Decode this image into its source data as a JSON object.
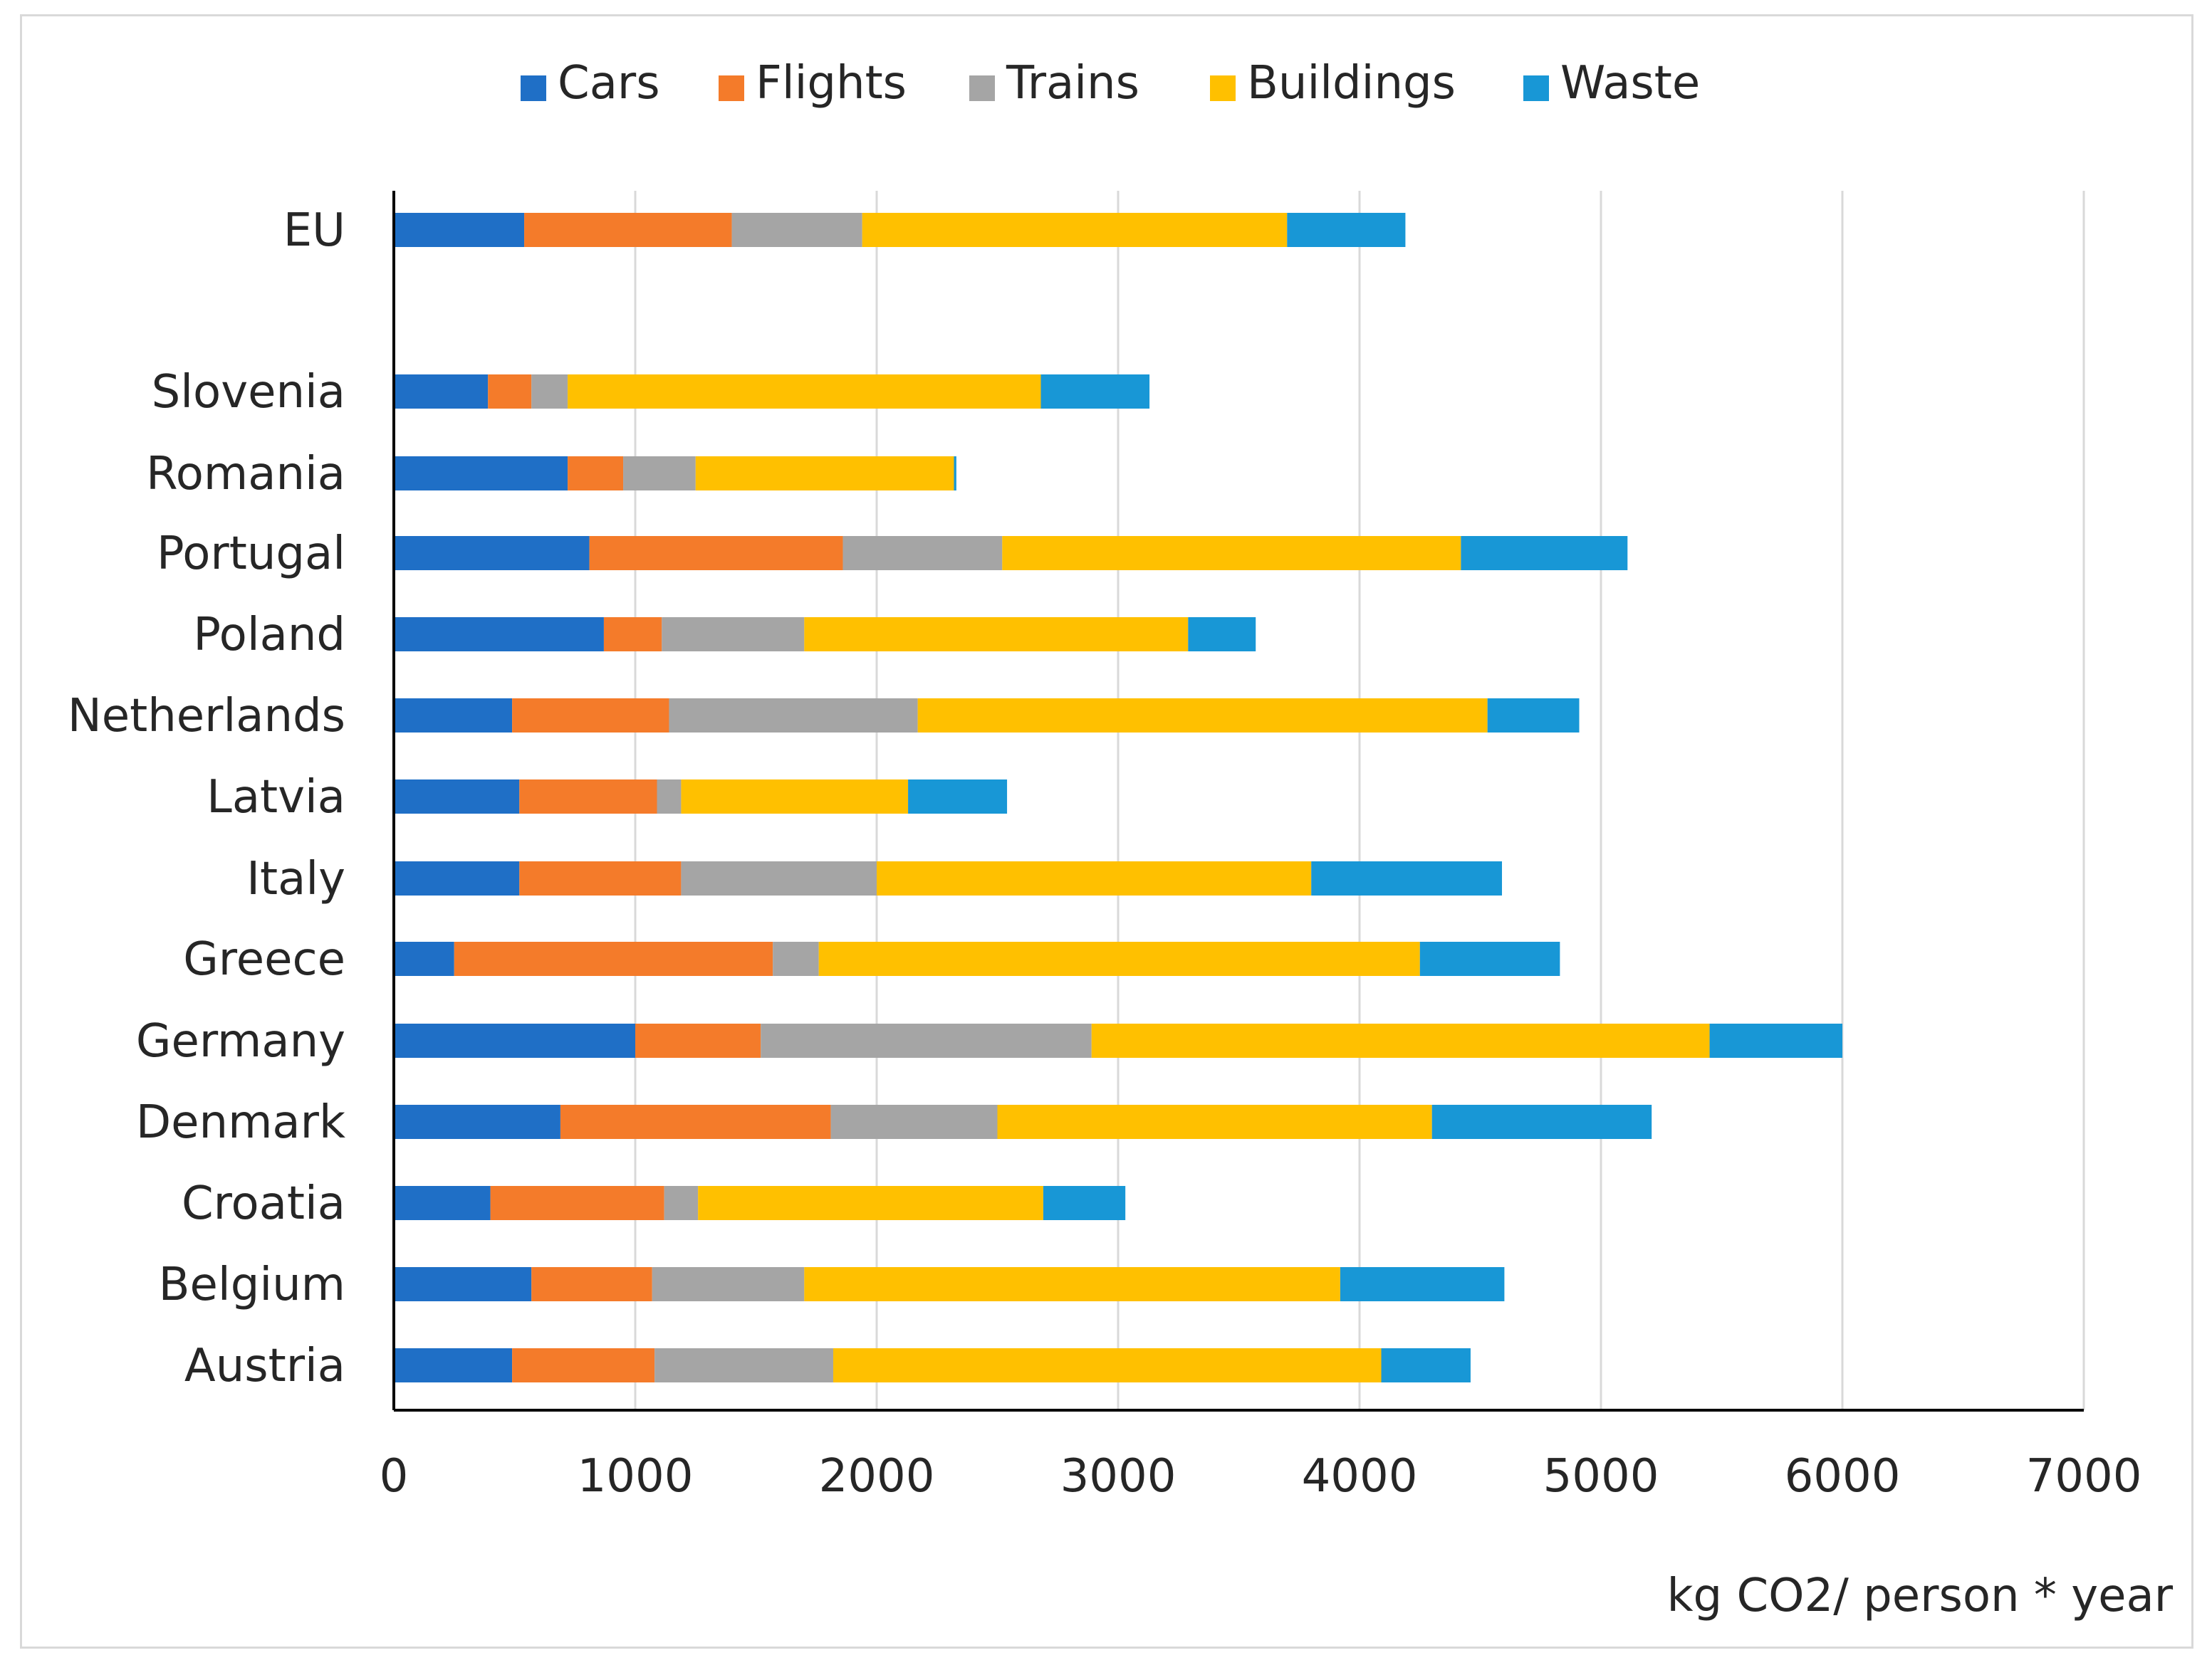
{
  "chart_data": {
    "type": "bar",
    "orientation": "horizontal",
    "stacked": true,
    "title": "",
    "xlabel": "kg CO2/ person * year",
    "ylabel": "",
    "xlim": [
      0,
      7000
    ],
    "xticks": [
      0,
      1000,
      2000,
      3000,
      4000,
      5000,
      6000,
      7000
    ],
    "grid": "vertical gridlines",
    "legend_position": "top",
    "categories": [
      "EU",
      "Slovenia",
      "Romania",
      "Portugal",
      "Poland",
      "Netherlands",
      "Latvia",
      "Italy",
      "Greece",
      "Germany",
      "Denmark",
      "Croatia",
      "Belgium",
      "Austria"
    ],
    "series": [
      {
        "name": "Cars",
        "color": "#1f6fc6",
        "values": [
          540,
          390,
          720,
          810,
          870,
          490,
          520,
          520,
          250,
          1000,
          690,
          400,
          570,
          490
        ]
      },
      {
        "name": "Flights",
        "color": "#f47b2a",
        "values": [
          860,
          180,
          230,
          1050,
          240,
          650,
          570,
          670,
          1320,
          520,
          1120,
          720,
          500,
          590
        ]
      },
      {
        "name": "Trains",
        "color": "#a5a5a5",
        "values": [
          540,
          150,
          300,
          660,
          590,
          1030,
          100,
          810,
          190,
          1370,
          690,
          140,
          630,
          740
        ]
      },
      {
        "name": "Buildings",
        "color": "#ffc000",
        "values": [
          1760,
          1960,
          1070,
          1900,
          1590,
          2360,
          940,
          1800,
          2490,
          2560,
          1800,
          1430,
          2220,
          2270
        ]
      },
      {
        "name": "Waste",
        "color": "#1897d6",
        "values": [
          490,
          450,
          10,
          690,
          280,
          380,
          410,
          790,
          580,
          550,
          910,
          340,
          680,
          370
        ]
      }
    ]
  }
}
